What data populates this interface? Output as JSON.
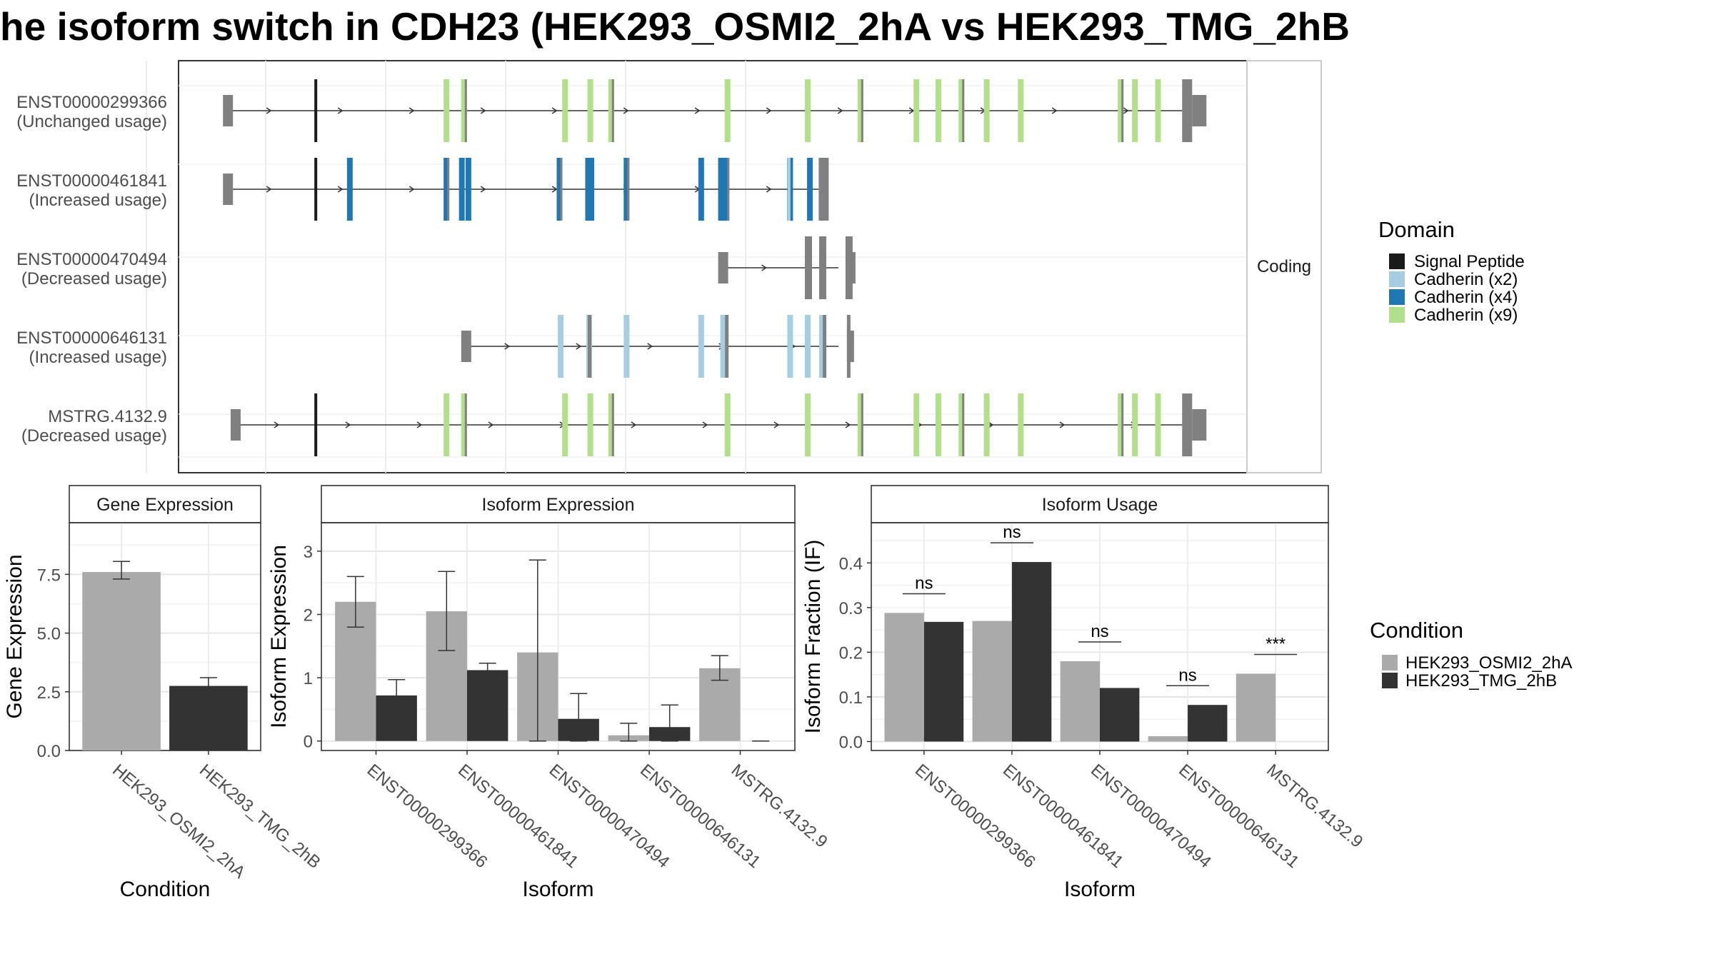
{
  "title": "he isoform switch in CDH23 (HEK293_OSMI2_2hA vs HEK293_TMG_2hB",
  "colors": {
    "signal_peptide": "#1a1a1a",
    "cadherin_x2": "#a6cee3",
    "cadherin_x4": "#1f78b4",
    "cadherin_x9": "#b2df8a",
    "exon_grey": "#808080",
    "cond1": "#aaaaaa",
    "cond2": "#333333"
  },
  "structure": {
    "facet_label": "Coding",
    "legend_title": "Domain",
    "legend": [
      {
        "label": "Signal Peptide",
        "color": "#1a1a1a"
      },
      {
        "label": "Cadherin (x2)",
        "color": "#a6cee3"
      },
      {
        "label": "Cadherin (x4)",
        "color": "#1f78b4"
      },
      {
        "label": "Cadherin (x9)",
        "color": "#b2df8a"
      }
    ],
    "transcripts": [
      {
        "name": "ENST00000299366",
        "usage": "(Unchanged usage)",
        "start": 205,
        "end": 1088,
        "dom": "x9"
      },
      {
        "name": "ENST00000461841",
        "usage": "(Increased usage)",
        "start": 205,
        "end": 757,
        "dom": "x4"
      },
      {
        "name": "ENST00000470494",
        "usage": "(Decreased usage)",
        "start": 656,
        "end": 775,
        "dom": "none"
      },
      {
        "name": "ENST00000646131",
        "usage": "(Increased usage)",
        "start": 422,
        "end": 775,
        "dom": "x2"
      },
      {
        "name": "MSTRG.4132.9",
        "usage": "(Decreased usage)",
        "start": 212,
        "end": 1088,
        "dom": "x9"
      }
    ]
  },
  "chart_data": [
    {
      "type": "bar",
      "title": "Gene Expression",
      "xlabel": "Condition",
      "ylabel": "Gene Expression",
      "categories": [
        "HEK293_OSMI2_2hA",
        "HEK293_TMG_2hB"
      ],
      "values": [
        7.6,
        2.75
      ],
      "errors": [
        [
          7.3,
          8.05
        ],
        [
          2.45,
          3.1
        ]
      ],
      "yticks": [
        "0.0",
        "2.5",
        "5.0",
        "7.5"
      ],
      "ylim": [
        0,
        9.7
      ]
    },
    {
      "type": "bar",
      "title": "Isoform Expression",
      "xlabel": "Isoform",
      "ylabel": "Isoform Expression",
      "categories": [
        "ENST00000299366",
        "ENST00000461841",
        "ENST00000470494",
        "ENST00000646131",
        "MSTRG.4132.9"
      ],
      "series": [
        {
          "name": "HEK293_OSMI2_2hA",
          "values": [
            2.2,
            2.05,
            1.4,
            0.09,
            1.15
          ],
          "errors": [
            [
              1.8,
              2.6
            ],
            [
              1.43,
              2.68
            ],
            [
              0,
              2.86
            ],
            [
              0,
              0.28
            ],
            [
              0.96,
              1.35
            ]
          ]
        },
        {
          "name": "HEK293_TMG_2hB",
          "values": [
            0.72,
            1.12,
            0.35,
            0.22,
            0.0
          ],
          "errors": [
            [
              0.47,
              0.97
            ],
            [
              1.0,
              1.23
            ],
            [
              0,
              0.75
            ],
            [
              0,
              0.57
            ],
            [
              0,
              0
            ]
          ]
        }
      ],
      "yticks": [
        "0",
        "1",
        "2",
        "3"
      ],
      "ylim": [
        -0.15,
        3.45
      ]
    },
    {
      "type": "bar",
      "title": "Isoform Usage",
      "xlabel": "Isoform",
      "ylabel": "Isoform Fraction (IF)",
      "categories": [
        "ENST00000299366",
        "ENST00000461841",
        "ENST00000470494",
        "ENST00000646131",
        "MSTRG.4132.9"
      ],
      "series": [
        {
          "name": "HEK293_OSMI2_2hA",
          "values": [
            0.288,
            0.27,
            0.18,
            0.012,
            0.152
          ]
        },
        {
          "name": "HEK293_TMG_2hB",
          "values": [
            0.268,
            0.402,
            0.12,
            0.082,
            0.0
          ]
        }
      ],
      "significance": [
        "ns",
        "ns",
        "ns",
        "ns",
        "***"
      ],
      "yticks": [
        "0.0",
        "0.1",
        "0.2",
        "0.3",
        "0.4"
      ],
      "ylim": [
        -0.02,
        0.49
      ]
    }
  ],
  "condition_legend": {
    "title": "Condition",
    "items": [
      {
        "label": "HEK293_OSMI2_2hA",
        "color": "#aaaaaa"
      },
      {
        "label": "HEK293_TMG_2hB",
        "color": "#333333"
      }
    ]
  }
}
